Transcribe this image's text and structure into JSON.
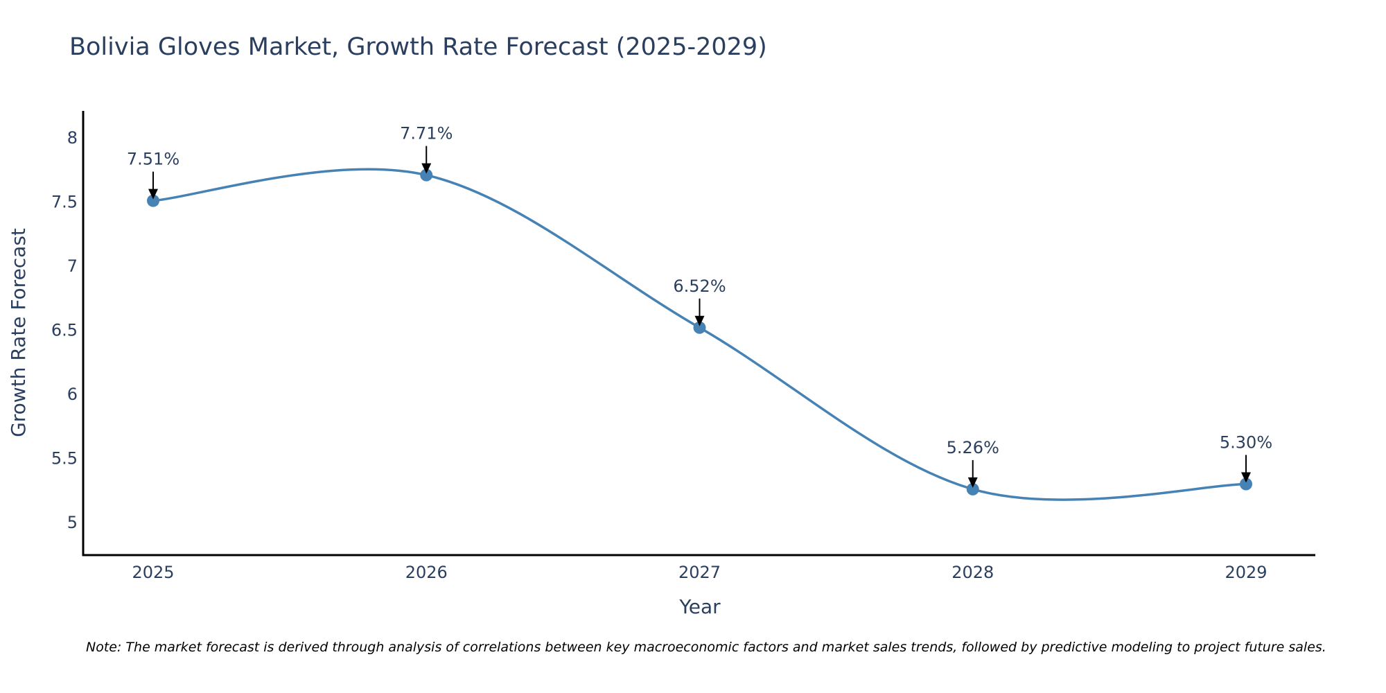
{
  "chart_data": {
    "type": "line",
    "title": "Bolivia Gloves Market, Growth Rate Forecast (2025-2029)",
    "xlabel": "Year",
    "ylabel": "Growth Rate Forecast",
    "categories": [
      "2025",
      "2026",
      "2027",
      "2028",
      "2029"
    ],
    "values": [
      7.51,
      7.71,
      6.52,
      5.26,
      5.3
    ],
    "data_labels": [
      "7.51%",
      "7.71%",
      "6.52%",
      "5.26%",
      "5.30%"
    ],
    "yticks": [
      5,
      5.5,
      6,
      6.5,
      7,
      7.5,
      8
    ],
    "ytick_labels": [
      "5",
      "5.5",
      "6",
      "6.5",
      "7",
      "7.5",
      "8"
    ],
    "ylim": [
      4.75,
      8.2
    ],
    "grid": false,
    "line_shape": "spline",
    "series_color": "#4682b4",
    "text_color": "#2a3f5f",
    "note": "Note: The market forecast is derived through analysis of correlations between key macroeconomic factors and market sales trends, followed by predictive modeling to project future sales."
  }
}
